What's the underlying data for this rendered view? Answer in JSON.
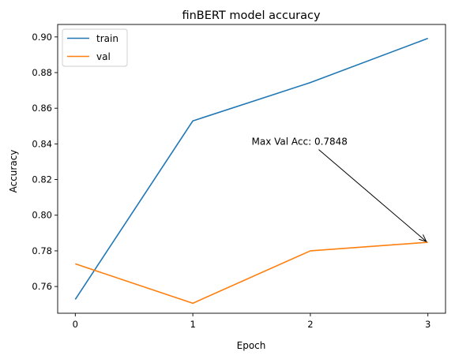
{
  "chart_data": {
    "type": "line",
    "title": "finBERT model accuracy",
    "xlabel": "Epoch",
    "ylabel": "Accuracy",
    "x": [
      0,
      1,
      2,
      3
    ],
    "xticks": [
      "0",
      "1",
      "2",
      "3"
    ],
    "xlim": [
      -0.15,
      3.15
    ],
    "ylim": [
      0.745,
      0.907
    ],
    "yticks": [
      "0.76",
      "0.78",
      "0.80",
      "0.82",
      "0.84",
      "0.86",
      "0.88",
      "0.90"
    ],
    "series": [
      {
        "name": "train",
        "values": [
          0.7528,
          0.8529,
          0.8744,
          0.8992
        ],
        "color": "#1f77b4"
      },
      {
        "name": "val",
        "values": [
          0.7727,
          0.7506,
          0.78,
          0.7848
        ],
        "color": "#ff7f0e"
      }
    ],
    "annotation": {
      "text": "Max Val Acc: 0.7848",
      "point": [
        3,
        0.7848
      ],
      "text_at": [
        1.5,
        0.835
      ]
    },
    "legend": "upper-left",
    "grid": false
  }
}
